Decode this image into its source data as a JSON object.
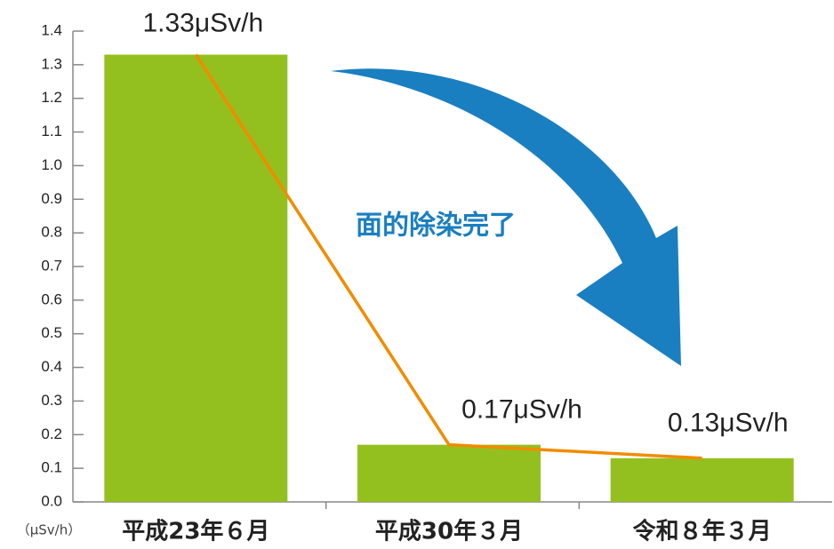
{
  "chart_data": {
    "type": "bar",
    "categories": [
      "平成23年６月",
      "平成30年３月",
      "令和８年３月"
    ],
    "values": [
      1.33,
      0.17,
      0.13
    ],
    "value_labels": [
      "1.33μSv/h",
      "0.17μSv/h",
      "0.13μSv/h"
    ],
    "color": "#93c01f",
    "line_color": "#f08c00",
    "ylim": [
      0,
      1.4
    ],
    "yticks": [
      {
        "value": 0,
        "label": "0.0"
      },
      0.1,
      0.2,
      0.3,
      0.4,
      0.5,
      0.6,
      0.7,
      0.8,
      0.9,
      {
        "value": 1,
        "label": "1.0"
      },
      1.1,
      1.2,
      1.3,
      1.4
    ],
    "y_label": "（μSv/h）",
    "annotation": "面的除染完了"
  }
}
